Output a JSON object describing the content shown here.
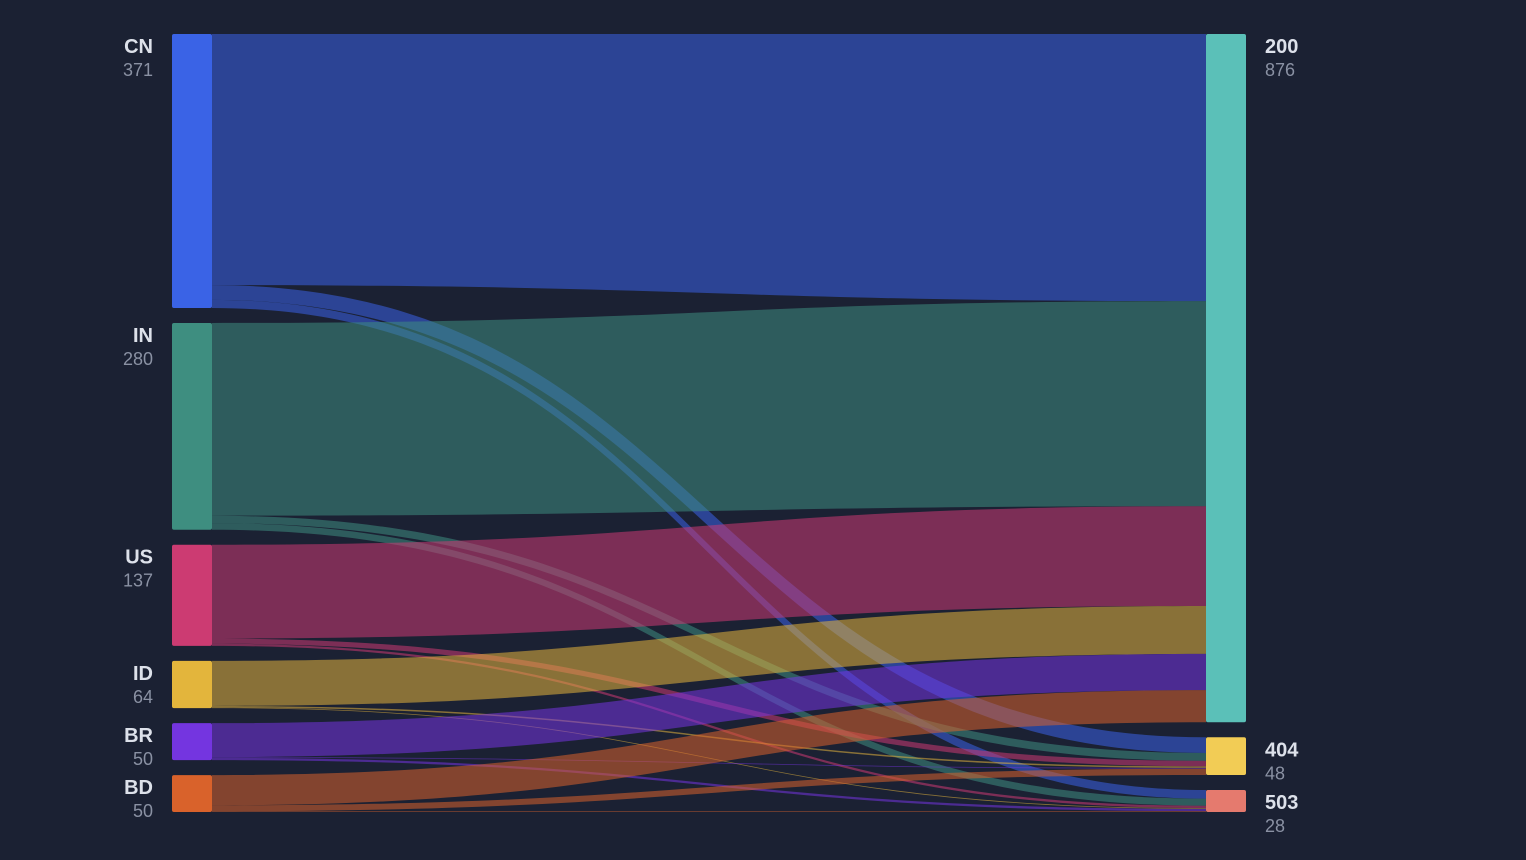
{
  "chart_data": {
    "type": "sankey",
    "nodes": [
      {
        "name": "CN",
        "value": 371,
        "color": "#3a63e6",
        "column": 0
      },
      {
        "name": "IN",
        "value": 280,
        "color": "#3e8e80",
        "column": 0
      },
      {
        "name": "US",
        "value": 137,
        "color": "#cc3b72",
        "column": 0
      },
      {
        "name": "ID",
        "value": 64,
        "color": "#e3b53c",
        "column": 0
      },
      {
        "name": "BR",
        "value": 50,
        "color": "#7435e0",
        "column": 0
      },
      {
        "name": "BD",
        "value": 50,
        "color": "#d9622b",
        "column": 0
      },
      {
        "name": "200",
        "value": 876,
        "color": "#5bc0b8",
        "column": 1
      },
      {
        "name": "404",
        "value": 48,
        "color": "#f2cc55",
        "column": 1
      },
      {
        "name": "503",
        "value": 28,
        "color": "#e57a6e",
        "column": 1
      }
    ],
    "links": [
      {
        "source": 0,
        "target": 6,
        "value": 340
      },
      {
        "source": 0,
        "target": 7,
        "value": 20
      },
      {
        "source": 0,
        "target": 8,
        "value": 11
      },
      {
        "source": 1,
        "target": 6,
        "value": 261
      },
      {
        "source": 1,
        "target": 7,
        "value": 10
      },
      {
        "source": 1,
        "target": 8,
        "value": 9
      },
      {
        "source": 2,
        "target": 6,
        "value": 127
      },
      {
        "source": 2,
        "target": 7,
        "value": 7
      },
      {
        "source": 2,
        "target": 8,
        "value": 3
      },
      {
        "source": 3,
        "target": 6,
        "value": 61
      },
      {
        "source": 3,
        "target": 7,
        "value": 2
      },
      {
        "source": 3,
        "target": 8,
        "value": 1
      },
      {
        "source": 4,
        "target": 6,
        "value": 46
      },
      {
        "source": 4,
        "target": 7,
        "value": 1
      },
      {
        "source": 4,
        "target": 8,
        "value": 3
      },
      {
        "source": 5,
        "target": 6,
        "value": 41
      },
      {
        "source": 5,
        "target": 7,
        "value": 8
      },
      {
        "source": 5,
        "target": 8,
        "value": 1
      }
    ]
  }
}
